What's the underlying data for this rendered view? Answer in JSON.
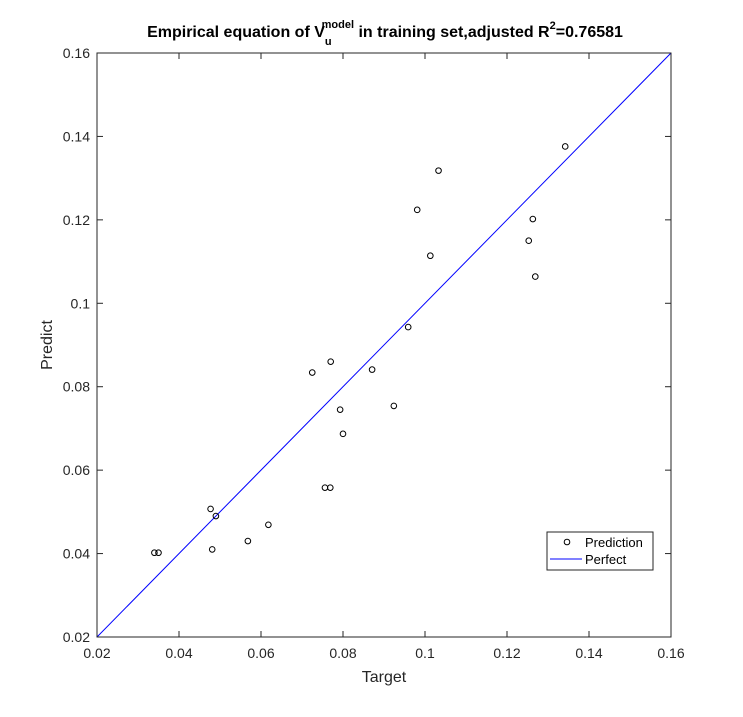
{
  "chart_data": {
    "type": "scatter",
    "title": {
      "prefix": "Empirical equation of V",
      "subscript": "u",
      "superscript": "model",
      "middle": " in training set,adjusted R",
      "r_superscript": "2",
      "suffix": "=0.76581"
    },
    "xlabel": "Target",
    "ylabel": "Predict",
    "xlim": [
      0.02,
      0.16
    ],
    "ylim": [
      0.02,
      0.16
    ],
    "xticks": [
      0.02,
      0.04,
      0.06,
      0.08,
      0.1,
      0.12,
      0.14,
      0.16
    ],
    "yticks": [
      0.02,
      0.04,
      0.06,
      0.08,
      0.1,
      0.12,
      0.14,
      0.16
    ],
    "xtick_labels": [
      "0.02",
      "0.04",
      "0.06",
      "0.08",
      "0.1",
      "0.12",
      "0.14",
      "0.16"
    ],
    "ytick_labels": [
      "0.02",
      "0.04",
      "0.06",
      "0.08",
      "0.1",
      "0.12",
      "0.14",
      "0.16"
    ],
    "grid": false,
    "legend_position": "bottom-right",
    "series": [
      {
        "name": "Prediction",
        "style": "circle-markers",
        "color": "#000000",
        "points": [
          [
            0.034,
            0.0402
          ],
          [
            0.035,
            0.0402
          ],
          [
            0.0477,
            0.0507
          ],
          [
            0.0481,
            0.041
          ],
          [
            0.049,
            0.049
          ],
          [
            0.0568,
            0.043
          ],
          [
            0.0618,
            0.0469
          ],
          [
            0.0725,
            0.0834
          ],
          [
            0.0756,
            0.0558
          ],
          [
            0.0769,
            0.0558
          ],
          [
            0.077,
            0.086
          ],
          [
            0.0793,
            0.0745
          ],
          [
            0.08,
            0.0687
          ],
          [
            0.0871,
            0.0841
          ],
          [
            0.0924,
            0.0754
          ],
          [
            0.0959,
            0.0943
          ],
          [
            0.0981,
            0.1224
          ],
          [
            0.1013,
            0.1114
          ],
          [
            0.1033,
            0.1318
          ],
          [
            0.1253,
            0.115
          ],
          [
            0.1263,
            0.1202
          ],
          [
            0.1269,
            0.1064
          ],
          [
            0.1342,
            0.1376
          ]
        ]
      },
      {
        "name": "Perfect",
        "style": "line",
        "color": "#0000ff",
        "points": [
          [
            0.02,
            0.02
          ],
          [
            0.16,
            0.16
          ]
        ]
      }
    ]
  }
}
